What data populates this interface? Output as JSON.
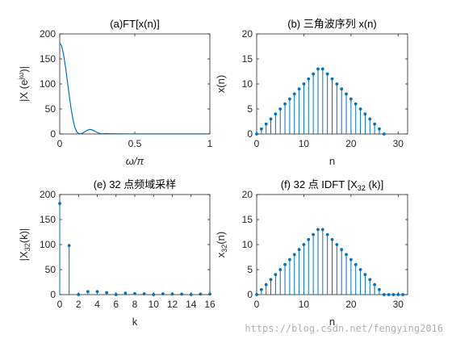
{
  "watermark": "https://blog.csdn.net/fengying2016",
  "colors": {
    "line": "#0072BD",
    "axes": "#262626",
    "background": "#ffffff",
    "watermark": "#b0b0b0"
  },
  "chart_data": [
    {
      "id": "a",
      "type": "line",
      "title": "(a)FT[x(n)]",
      "xlabel": "ω/π",
      "ylabel": "|X (e^{jω})|",
      "xlim": [
        0,
        1
      ],
      "ylim": [
        0,
        200
      ],
      "xticks": [
        0,
        0.5,
        1
      ],
      "xticklabels": [
        "0",
        "0.5",
        "1"
      ],
      "yticks": [
        0,
        50,
        100,
        150,
        200
      ],
      "yticklabels": [
        "0",
        "50",
        "100",
        "150",
        "200"
      ],
      "grid": false,
      "series": [
        {
          "x": [
            0,
            0.0125,
            0.025,
            0.0375,
            0.05,
            0.0625,
            0.075,
            0.0875,
            0.1,
            0.1125,
            0.125,
            0.1375,
            0.15,
            0.1625,
            0.175,
            0.1875,
            0.2,
            0.2125,
            0.225,
            0.2375,
            0.25,
            0.2625,
            0.275,
            0.2875,
            0.3,
            0.35,
            0.4,
            0.45,
            0.5,
            0.6,
            0.7,
            0.8,
            0.9,
            1
          ],
          "y": [
            182,
            176,
            160,
            136,
            108,
            79,
            52,
            30,
            14,
            5,
            1,
            0.5,
            1.5,
            3.5,
            6,
            8,
            9,
            8.5,
            7,
            5,
            3,
            1.5,
            0.5,
            0.5,
            1,
            0.5,
            0.4,
            0.3,
            0.3,
            0.3,
            0.3,
            0.3,
            0.3,
            0.3
          ]
        }
      ]
    },
    {
      "id": "b",
      "type": "stem",
      "title": "(b) 三角波序列 x(n)",
      "xlabel": "n",
      "ylabel": "x(n)",
      "xlim": [
        0,
        32
      ],
      "ylim": [
        0,
        20
      ],
      "xticks": [
        0,
        10,
        20,
        30
      ],
      "xticklabels": [
        "0",
        "10",
        "20",
        "30"
      ],
      "yticks": [
        0,
        5,
        10,
        15,
        20
      ],
      "yticklabels": [
        "0",
        "5",
        "10",
        "15",
        "20"
      ],
      "grid": false,
      "series": [
        {
          "x": [
            0,
            1,
            2,
            3,
            4,
            5,
            6,
            7,
            8,
            9,
            10,
            11,
            12,
            13,
            14,
            15,
            16,
            17,
            18,
            19,
            20,
            21,
            22,
            23,
            24,
            25,
            26,
            27
          ],
          "y": [
            0,
            1,
            2,
            3,
            4,
            5,
            6,
            7,
            8,
            9,
            10,
            11,
            12,
            13,
            13,
            12,
            11,
            10,
            9,
            8,
            7,
            6,
            5,
            4,
            3,
            2,
            1,
            0
          ]
        }
      ]
    },
    {
      "id": "e",
      "type": "stem",
      "title": "(e) 32 点频域采样",
      "xlabel": "k",
      "ylabel": "|X_{32}(k)|",
      "xlim": [
        0,
        16
      ],
      "ylim": [
        0,
        200
      ],
      "xticks": [
        0,
        2,
        4,
        6,
        8,
        10,
        12,
        14,
        16
      ],
      "xticklabels": [
        "0",
        "2",
        "4",
        "6",
        "8",
        "10",
        "12",
        "14",
        "16"
      ],
      "yticks": [
        0,
        50,
        100,
        150,
        200
      ],
      "yticklabels": [
        "0",
        "50",
        "100",
        "150",
        "200"
      ],
      "grid": false,
      "series": [
        {
          "x": [
            0,
            1,
            2,
            3,
            4,
            5,
            6,
            7,
            8,
            9,
            10,
            11,
            12,
            13,
            14,
            15,
            16
          ],
          "y": [
            182,
            98,
            0,
            6,
            6,
            4,
            0,
            3,
            2,
            1.5,
            0,
            1.5,
            1,
            1,
            0,
            1,
            1
          ]
        }
      ]
    },
    {
      "id": "f",
      "type": "stem",
      "title": "(f) 32 点 IDFT [X_{32} (k)]",
      "xlabel": "n",
      "ylabel": "x_{32}(n)",
      "xlim": [
        0,
        32
      ],
      "ylim": [
        0,
        20
      ],
      "xticks": [
        0,
        10,
        20,
        30
      ],
      "xticklabels": [
        "0",
        "10",
        "20",
        "30"
      ],
      "yticks": [
        0,
        5,
        10,
        15,
        20
      ],
      "yticklabels": [
        "0",
        "5",
        "10",
        "15",
        "20"
      ],
      "grid": false,
      "series": [
        {
          "x": [
            0,
            1,
            2,
            3,
            4,
            5,
            6,
            7,
            8,
            9,
            10,
            11,
            12,
            13,
            14,
            15,
            16,
            17,
            18,
            19,
            20,
            21,
            22,
            23,
            24,
            25,
            26,
            27,
            28,
            29,
            30,
            31
          ],
          "y": [
            0,
            1,
            2,
            3,
            4,
            5,
            6,
            7,
            8,
            9,
            10,
            11,
            12,
            13,
            13,
            12,
            11,
            10,
            9,
            8,
            7,
            6,
            5,
            4,
            3,
            2,
            1,
            0,
            0,
            0,
            0,
            0
          ]
        }
      ]
    }
  ]
}
